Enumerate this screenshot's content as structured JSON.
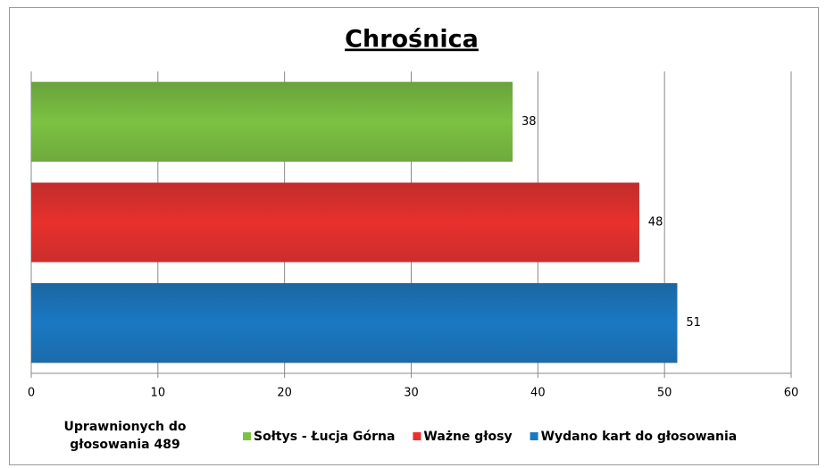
{
  "chart_data": {
    "type": "bar",
    "orientation": "horizontal",
    "title": "Chrośnica",
    "categories": [
      null
    ],
    "series": [
      {
        "name": "Sołtys - Łucja Górna",
        "color": "#7cc242",
        "values": [
          38
        ]
      },
      {
        "name": "Ważne głosy",
        "color": "#e8302d",
        "values": [
          48
        ]
      },
      {
        "name": "Wydano kart do głosowania",
        "color": "#1a78c2",
        "values": [
          51
        ]
      }
    ],
    "xlim": [
      0,
      60
    ],
    "xticks": [
      0,
      10,
      20,
      30,
      40,
      50,
      60
    ],
    "grid": true,
    "annotations": [
      "Uprawnionych do",
      "głosowania  489"
    ],
    "legend": "bottom"
  }
}
